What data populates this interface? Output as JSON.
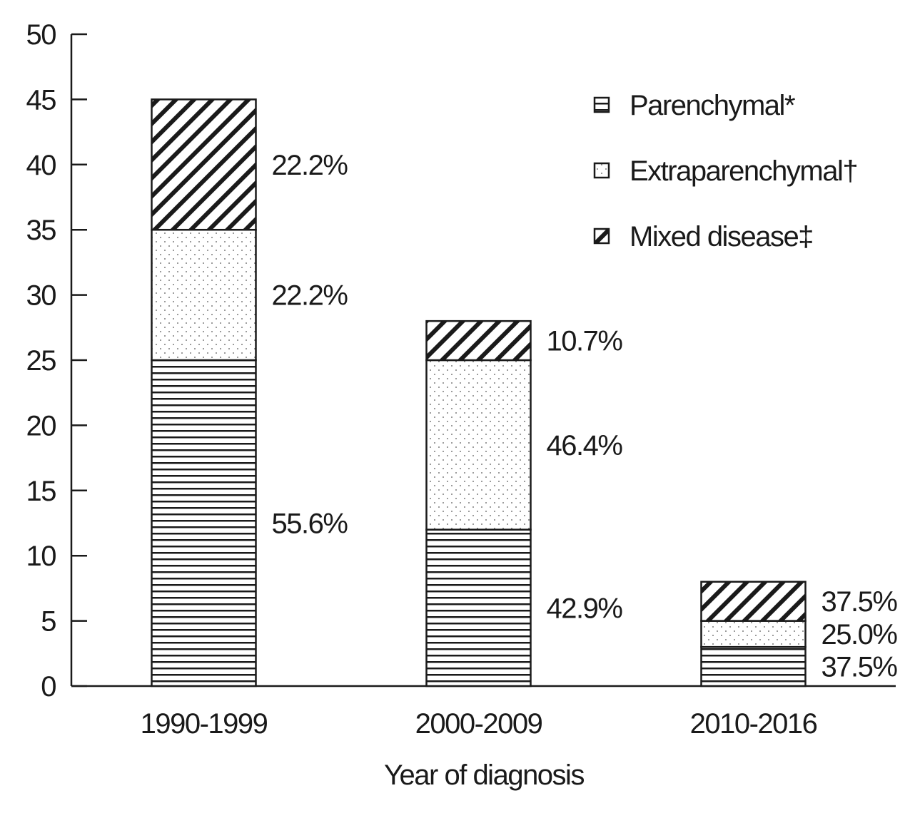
{
  "chart_data": {
    "type": "bar",
    "stacked": true,
    "title": "",
    "xlabel": "Year of diagnosis",
    "ylabel": "",
    "ylim": [
      0,
      50
    ],
    "yticks": [
      0,
      5,
      10,
      15,
      20,
      25,
      30,
      35,
      40,
      45,
      50
    ],
    "grid": false,
    "legend_position": "top-right",
    "categories": [
      "1990-1999",
      "2000-2009",
      "2010-2016"
    ],
    "series": [
      {
        "name": "Parenchymal*",
        "pattern": "horizontal-lines",
        "values": [
          25,
          12,
          3
        ],
        "labels": [
          "55.6%",
          "42.9%",
          "37.5%"
        ]
      },
      {
        "name": "Extraparenchymal†",
        "pattern": "dots",
        "values": [
          10,
          13,
          2
        ],
        "labels": [
          "22.2%",
          "46.4%",
          "25.0%"
        ]
      },
      {
        "name": "Mixed disease‡",
        "pattern": "diagonal-lines",
        "values": [
          10,
          3,
          3
        ],
        "labels": [
          "22.2%",
          "10.7%",
          "37.5%"
        ]
      }
    ],
    "colors": {
      "ink": "#1a1a1a",
      "background": "#ffffff"
    }
  }
}
